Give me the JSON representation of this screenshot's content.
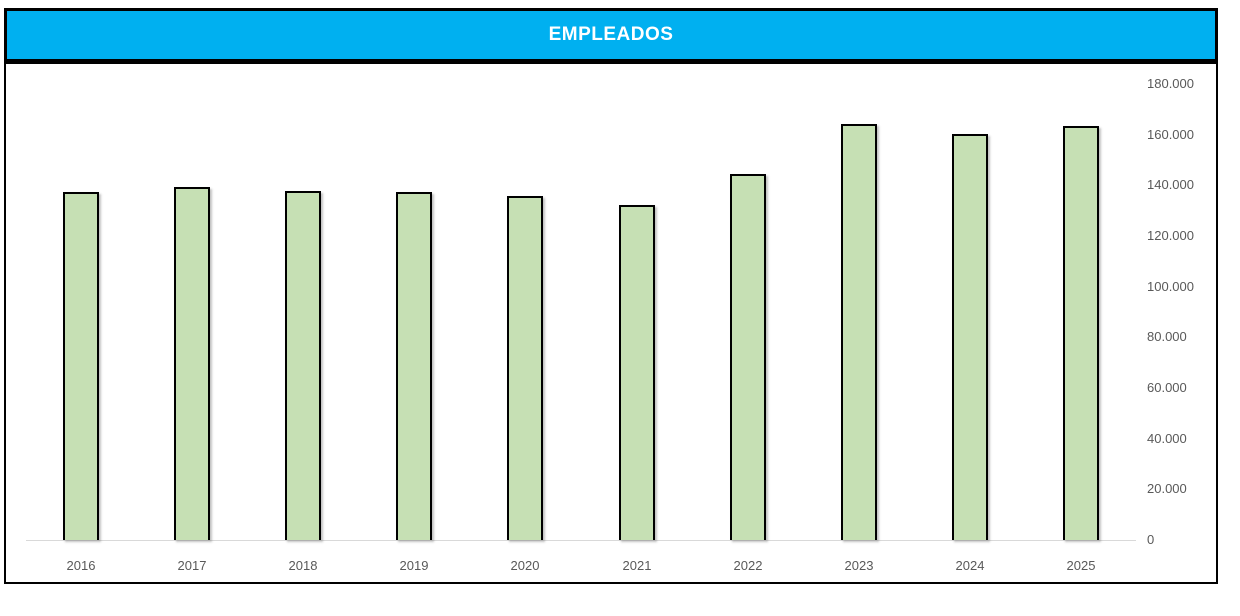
{
  "header": {
    "title": "EMPLEADOS",
    "background": "#00b0f0",
    "text_color": "#ffffff",
    "border_color": "#000000"
  },
  "chart_data": {
    "type": "bar",
    "title": "EMPLEADOS",
    "categories": [
      "2016",
      "2017",
      "2018",
      "2019",
      "2020",
      "2021",
      "2022",
      "2023",
      "2024",
      "2025"
    ],
    "values": [
      136500,
      138500,
      137000,
      136500,
      135000,
      131500,
      143500,
      163500,
      159500,
      162500
    ],
    "xlabel": "",
    "ylabel": "",
    "ylim": [
      0,
      180000
    ],
    "y_tick_interval": 20000,
    "y_tick_labels": [
      "0",
      "20.000",
      "40.000",
      "60.000",
      "80.000",
      "100.000",
      "120.000",
      "140.000",
      "160.000",
      "180.000"
    ],
    "y_axis_side": "right",
    "legend": false,
    "grid": false,
    "bar_fill": "#c6e0b4",
    "bar_border": "#000000",
    "axis_line_color": "#d9d9d9",
    "tick_label_color": "#595959"
  }
}
